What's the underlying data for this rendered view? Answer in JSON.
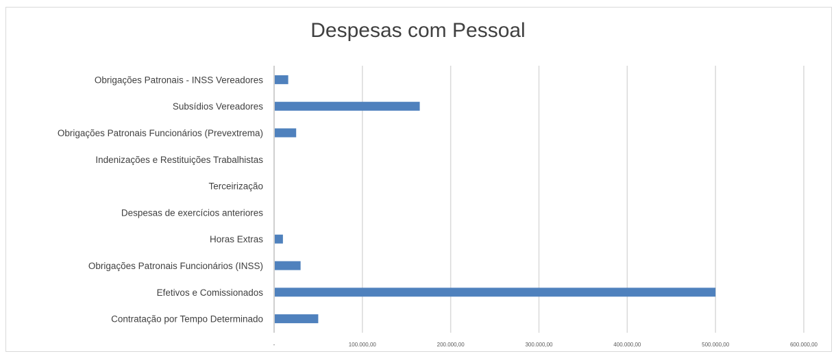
{
  "chart_data": {
    "type": "bar",
    "orientation": "horizontal",
    "title": "Despesas com Pessoal",
    "categories": [
      "Obrigações Patronais - INSS Vereadores",
      "Subsídios Vereadores",
      "Obrigações Patronais Funcionários (Prevextrema)",
      "Indenizações e Restituições Trabalhistas",
      "Terceirização",
      "Despesas de exercícios anteriores",
      "Horas Extras",
      "Obrigações Patronais Funcionários (INSS)",
      "Efetivos e Comissionados",
      "Contratação por Tempo Determinado"
    ],
    "values": [
      16000,
      165000,
      25000,
      0,
      0,
      0,
      10000,
      30000,
      500000,
      50000
    ],
    "xlim": [
      0,
      600000
    ],
    "x_tick_labels": [
      "-",
      "100.000,00",
      "200.000,00",
      "300.000,00",
      "400.000,00",
      "500.000,00",
      "600.000,00"
    ],
    "grid": "vertical",
    "bar_color": "#4f81bd"
  }
}
